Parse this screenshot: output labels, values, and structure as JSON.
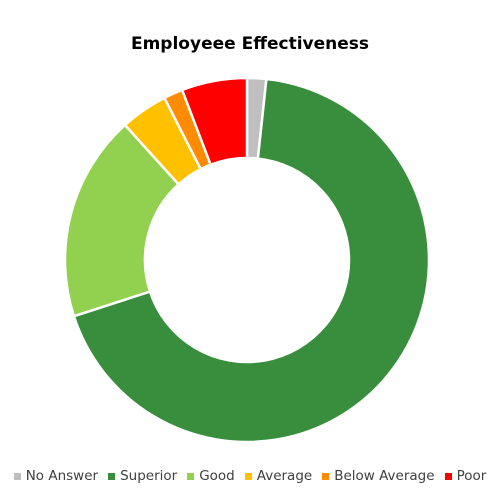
{
  "chart_data": {
    "type": "pie",
    "title": "Employeee Effectiveness",
    "categories": [
      "No Answer",
      "Superior",
      "Good",
      "Average",
      "Below Average",
      "Poor"
    ],
    "values": [
      1.7,
      68.3,
      18.3,
      4.2,
      1.7,
      5.8
    ],
    "colors": [
      "#bfbfbf",
      "#388e3c",
      "#92d050",
      "#ffc000",
      "#ff8c00",
      "#ff0000"
    ],
    "donut": true,
    "legend": "bottom"
  }
}
